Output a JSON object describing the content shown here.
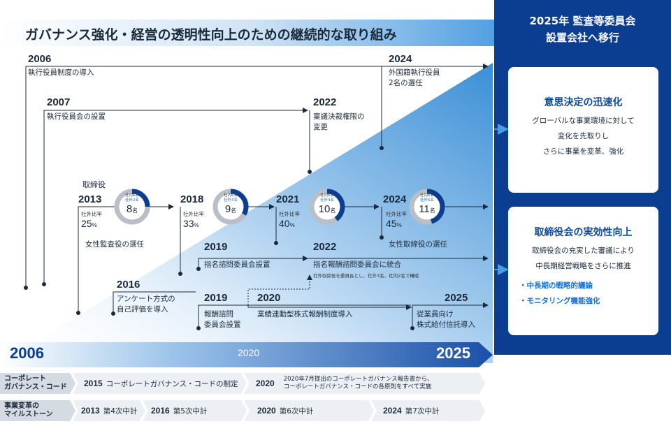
{
  "header": {
    "title": "ガバナンス強化・経営の透明性向上のための継続的な取り組み",
    "right_title_line1": "2025年 監査等委員会",
    "right_title_line2": "設置会社へ移行"
  },
  "panels": {
    "decision": {
      "title": "意思決定の迅速化",
      "lines": [
        "グローバルな事業環境に対して",
        "変化を先取りし",
        "さらに事業を変革、強化"
      ]
    },
    "board": {
      "title": "取締役会の実効性向上",
      "lines": [
        "取締役会の充実した審議により",
        "中長期経営戦略をさらに推進"
      ],
      "bullets": [
        "・中長期の戦略的議論",
        "・モニタリング機能強化"
      ]
    }
  },
  "timeline": {
    "e2006": {
      "year": "2006",
      "text": "執行役員制度の導入"
    },
    "e2007": {
      "year": "2007",
      "text": "執行役員会の設置"
    },
    "e2024a": {
      "year": "2024",
      "line1": "外国籍執行役員",
      "line2": "2名の選任"
    },
    "e2022a": {
      "year": "2022",
      "line1": "稟議決裁権限の",
      "line2": "変更"
    },
    "board_label": "取締役",
    "ratio_caption": "社外比率",
    "ratios": [
      {
        "year": "2013",
        "ratio": "25",
        "unit": "%",
        "inside": "社内6名",
        "outside": "社外2名",
        "total": "8",
        "total_unit": "名",
        "fraction": 0.25
      },
      {
        "year": "2018",
        "ratio": "33",
        "unit": "%",
        "inside": "社内6名",
        "outside": "社外3名",
        "total": "9",
        "total_unit": "名",
        "fraction": 0.333
      },
      {
        "year": "2021",
        "ratio": "40",
        "unit": "%",
        "inside": "社内6名",
        "outside": "社外4名",
        "total": "10",
        "total_unit": "名",
        "fraction": 0.4
      },
      {
        "year": "2024",
        "ratio": "45",
        "unit": "%",
        "inside": "社内6名",
        "outside": "社外5名",
        "total": "11",
        "total_unit": "名",
        "fraction": 0.4545
      }
    ],
    "female_auditor": "女性監査役の選任",
    "female_director": "女性取締役の選任",
    "e2019a": {
      "year": "2019",
      "text": "指名諮問委員会設置"
    },
    "e2022b": {
      "year": "2022",
      "text": "指名報酬諮問委員会に統合",
      "note": "社外取締役を委員長とし、社外3名、社内2名で構成"
    },
    "e2016": {
      "year": "2016",
      "line1": "アンケート方式の",
      "line2": "自己評価を導入"
    },
    "e2019b": {
      "year": "2019",
      "line1": "報酬諮問",
      "line2": "委員会設置"
    },
    "e2020": {
      "year": "2020",
      "text": "業績連動型株式報酬制度導入"
    },
    "e2025": {
      "year": "2025",
      "line1": "従業員向け",
      "line2": "株式給付信託導入"
    }
  },
  "axis": {
    "start": "2006",
    "mid": "2020",
    "end": "2025"
  },
  "bottom": {
    "code_row": {
      "head_line1": "コーポレート",
      "head_line2": "ガバナンス・コード",
      "items": [
        {
          "year": "2015",
          "text": "コーポレートガバナンス・コードの制定"
        },
        {
          "year": "2020",
          "line1": "2020年7月提出のコーポレートガバナンス報告書から、",
          "line2": "コーポレートガバナンス・コードの各原則をすべて実施"
        }
      ]
    },
    "plan_row": {
      "head_line1": "事業変革の",
      "head_line2": "マイルストーン",
      "items": [
        {
          "year": "2013",
          "text": "第4次中計"
        },
        {
          "year": "2016",
          "text": "第5次中計"
        },
        {
          "year": "2020",
          "text": "第6次中計"
        },
        {
          "year": "2024",
          "text": "第7次中計"
        }
      ]
    }
  },
  "colors": {
    "navy": "#0b3d91",
    "accent": "#1b6fd1",
    "donut_gray": "#b9bfc6"
  }
}
